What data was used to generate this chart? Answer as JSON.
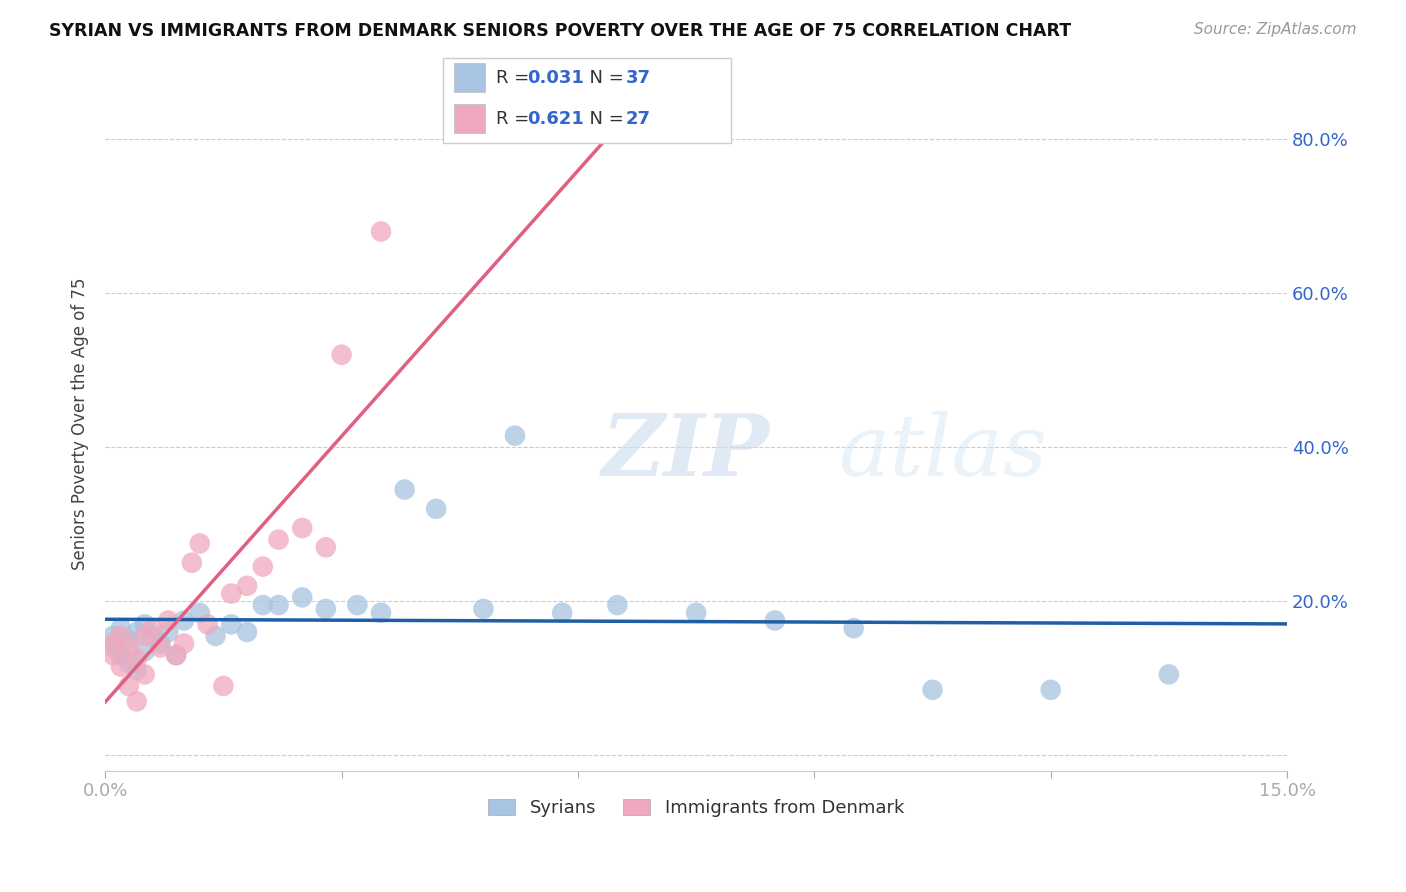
{
  "title": "SYRIAN VS IMMIGRANTS FROM DENMARK SENIORS POVERTY OVER THE AGE OF 75 CORRELATION CHART",
  "source": "Source: ZipAtlas.com",
  "ylabel": "Seniors Poverty Over the Age of 75",
  "xlim": [
    0.0,
    0.15
  ],
  "ylim": [
    -0.02,
    0.88
  ],
  "yticks": [
    0.0,
    0.2,
    0.4,
    0.6,
    0.8
  ],
  "watermark_zip": "ZIP",
  "watermark_atlas": "atlas",
  "legend_r1": "R = 0.031",
  "legend_n1": "N = 37",
  "legend_r2": "R = 0.621",
  "legend_n2": "N = 27",
  "color_syrians": "#a8c4e0",
  "color_denmark": "#f0a8be",
  "color_line_syrians": "#1f5fa6",
  "color_line_denmark": "#e06080",
  "syrians_x": [
    0.001,
    0.001,
    0.002,
    0.002,
    0.003,
    0.003,
    0.004,
    0.004,
    0.005,
    0.005,
    0.006,
    0.007,
    0.008,
    0.009,
    0.01,
    0.012,
    0.014,
    0.016,
    0.018,
    0.02,
    0.022,
    0.025,
    0.028,
    0.032,
    0.035,
    0.038,
    0.042,
    0.048,
    0.052,
    0.058,
    0.065,
    0.075,
    0.085,
    0.095,
    0.105,
    0.12,
    0.135
  ],
  "syrians_y": [
    0.155,
    0.14,
    0.165,
    0.13,
    0.15,
    0.12,
    0.16,
    0.11,
    0.17,
    0.135,
    0.155,
    0.145,
    0.16,
    0.13,
    0.175,
    0.185,
    0.155,
    0.17,
    0.16,
    0.195,
    0.195,
    0.205,
    0.19,
    0.195,
    0.185,
    0.345,
    0.32,
    0.19,
    0.415,
    0.185,
    0.195,
    0.185,
    0.175,
    0.165,
    0.085,
    0.085,
    0.105
  ],
  "denmark_x": [
    0.001,
    0.001,
    0.002,
    0.002,
    0.003,
    0.003,
    0.004,
    0.004,
    0.005,
    0.005,
    0.006,
    0.007,
    0.008,
    0.009,
    0.01,
    0.011,
    0.012,
    0.013,
    0.015,
    0.016,
    0.018,
    0.02,
    0.022,
    0.025,
    0.028,
    0.03,
    0.035
  ],
  "denmark_y": [
    0.145,
    0.13,
    0.155,
    0.115,
    0.14,
    0.09,
    0.125,
    0.07,
    0.155,
    0.105,
    0.165,
    0.14,
    0.175,
    0.13,
    0.145,
    0.25,
    0.275,
    0.17,
    0.09,
    0.21,
    0.22,
    0.245,
    0.28,
    0.295,
    0.27,
    0.52,
    0.68
  ]
}
